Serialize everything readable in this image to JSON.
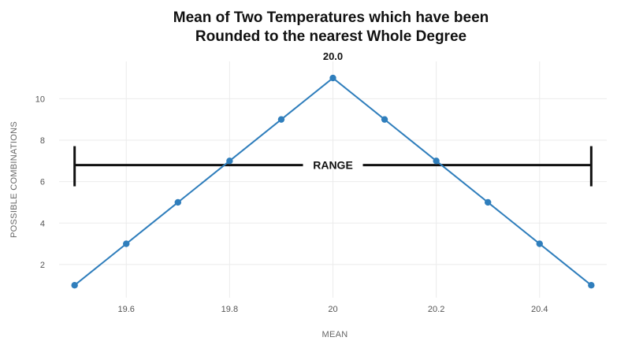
{
  "chart_data": {
    "type": "line",
    "title": "Mean of Two Temperatures which have been",
    "title_line2": "Rounded to the nearest Whole Degree",
    "xlabel": "MEAN",
    "ylabel": "POSSIBLE COMBINATIONS",
    "x": [
      19.5,
      19.6,
      19.7,
      19.8,
      19.9,
      20.0,
      20.1,
      20.2,
      20.3,
      20.4,
      20.5
    ],
    "series": [
      {
        "values": [
          1,
          3,
          5,
          7,
          9,
          11,
          9,
          7,
          5,
          3,
          1
        ],
        "color": "#2f7ebc"
      }
    ],
    "xlim": [
      19.47,
      20.53
    ],
    "ylim": [
      0.4,
      11.8
    ],
    "xticks": [
      19.6,
      19.8,
      20.0,
      20.2,
      20.4
    ],
    "xtick_labels": [
      "19.6",
      "19.8",
      "20",
      "20.2",
      "20.4"
    ],
    "yticks": [
      2,
      4,
      6,
      8,
      10
    ],
    "ytick_labels": [
      "2",
      "4",
      "6",
      "8",
      "10"
    ],
    "grid": true,
    "annotations": {
      "peak_label": "20.0",
      "range": {
        "label": "RANGE",
        "x_start": 19.5,
        "x_end": 20.5,
        "y": 6.8
      }
    }
  }
}
